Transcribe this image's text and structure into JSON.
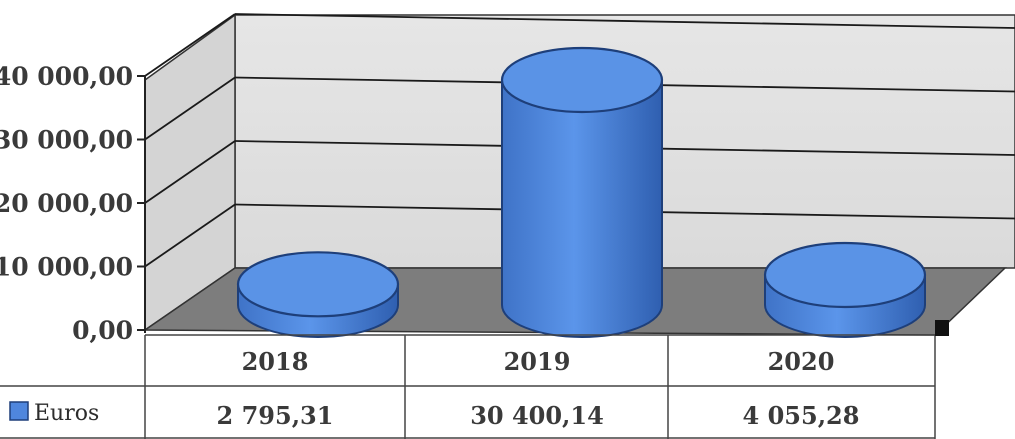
{
  "chart_data": {
    "type": "bar",
    "title": "",
    "xlabel": "",
    "ylabel": "",
    "categories": [
      "2018",
      "2019",
      "2020"
    ],
    "series": [
      {
        "name": "Euros",
        "values": [
          2795.31,
          30400.14,
          4055.28
        ],
        "value_labels": [
          "2 795,31",
          "30 400,14",
          "4 055,28"
        ]
      }
    ],
    "ylim": [
      0,
      40000
    ],
    "y_ticks": [
      0,
      10000,
      20000,
      30000,
      40000
    ],
    "y_tick_labels": [
      "0,00",
      "10 000,00",
      "20 000,00",
      "30 000,00",
      "40 000,00"
    ],
    "grid": true,
    "legend_position": "data-table-left",
    "style": "3d-cylinder",
    "colors": {
      "bar_fill": "#4f86dd",
      "bar_top": "#5a93e6",
      "bar_stroke": "#1e3f7a",
      "floor": "#7d7d7d",
      "wall": "#e2e2e2",
      "grid": "#1a1a1a"
    }
  }
}
